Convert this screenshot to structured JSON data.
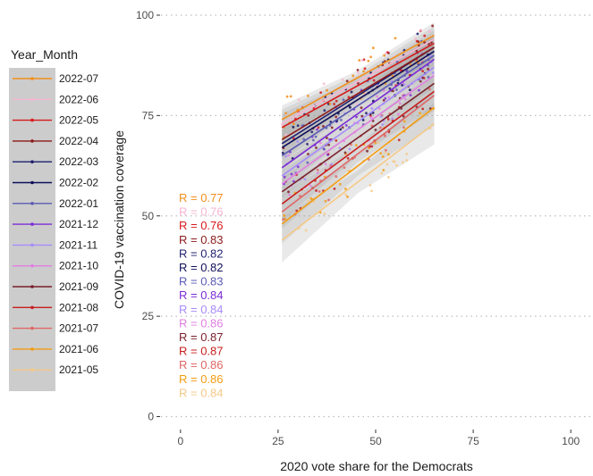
{
  "chart_data": {
    "type": "scatter",
    "xlabel": "2020 vote share for the Democrats",
    "ylabel": "COVID-19 vaccination coverage",
    "xlim": [
      -5,
      105
    ],
    "ylim": [
      -3,
      102
    ],
    "x_ticks": [
      0,
      25,
      50,
      75,
      100
    ],
    "y_ticks": [
      0,
      25,
      50,
      75,
      100
    ],
    "grid": "horizontal dotted",
    "legend": {
      "title": "Year_Month",
      "placement": "left",
      "entries": [
        "2022-07",
        "2022-06",
        "2022-05",
        "2022-04",
        "2022-03",
        "2022-02",
        "2022-01",
        "2021-12",
        "2021-11",
        "2021-10",
        "2021-09",
        "2021-08",
        "2021-07",
        "2021-06",
        "2021-05"
      ]
    },
    "series": [
      {
        "name": "2022-07",
        "color": "#f28e1c",
        "r_label": "R = 0.77",
        "fit": {
          "x": [
            26,
            65
          ],
          "y": [
            74,
            95
          ]
        },
        "band": 2.5
      },
      {
        "name": "2022-06",
        "color": "#f7b6d2",
        "r_label": "R = 0.76",
        "fit": {
          "x": [
            26,
            65
          ],
          "y": [
            73,
            94
          ]
        },
        "band": 2.5
      },
      {
        "name": "2022-05",
        "color": "#d7191c",
        "r_label": "R = 0.76",
        "fit": {
          "x": [
            26,
            65
          ],
          "y": [
            72,
            93
          ]
        },
        "band": 2.5
      },
      {
        "name": "2022-04",
        "color": "#8b1a1a",
        "r_label": "R = 0.83",
        "fit": {
          "x": [
            26,
            65
          ],
          "y": [
            69,
            92
          ]
        },
        "band": 2.5
      },
      {
        "name": "2022-03",
        "color": "#1f1f6f",
        "r_label": "R = 0.82",
        "fit": {
          "x": [
            26,
            65
          ],
          "y": [
            68,
            92
          ]
        },
        "band": 2.5
      },
      {
        "name": "2022-02",
        "color": "#0f0f5a",
        "r_label": "R = 0.82",
        "fit": {
          "x": [
            26,
            65
          ],
          "y": [
            67,
            91
          ]
        },
        "band": 2.5
      },
      {
        "name": "2022-01",
        "color": "#5a5ab5",
        "r_label": "R = 0.83",
        "fit": {
          "x": [
            26,
            65
          ],
          "y": [
            65,
            90
          ]
        },
        "band": 2.5
      },
      {
        "name": "2021-12",
        "color": "#7b2cd6",
        "r_label": "R = 0.84",
        "fit": {
          "x": [
            26,
            65
          ],
          "y": [
            62,
            89
          ]
        },
        "band": 2.5
      },
      {
        "name": "2021-11",
        "color": "#a78bfa",
        "r_label": "R = 0.84",
        "fit": {
          "x": [
            26,
            65
          ],
          "y": [
            60,
            87
          ]
        },
        "band": 2.5
      },
      {
        "name": "2021-10",
        "color": "#e07ee0",
        "r_label": "R = 0.86",
        "fit": {
          "x": [
            26,
            65
          ],
          "y": [
            58,
            85
          ]
        },
        "band": 2.5
      },
      {
        "name": "2021-09",
        "color": "#7a1f2b",
        "r_label": "R = 0.87",
        "fit": {
          "x": [
            26,
            65
          ],
          "y": [
            56,
            83
          ]
        },
        "band": 2.5
      },
      {
        "name": "2021-08",
        "color": "#c81e1e",
        "r_label": "R = 0.87",
        "fit": {
          "x": [
            26,
            65
          ],
          "y": [
            53,
            81
          ]
        },
        "band": 3
      },
      {
        "name": "2021-07",
        "color": "#e06666",
        "r_label": "R = 0.86",
        "fit": {
          "x": [
            26,
            65
          ],
          "y": [
            51,
            80
          ]
        },
        "band": 3
      },
      {
        "name": "2021-06",
        "color": "#f39c12",
        "r_label": "R = 0.86",
        "fit": {
          "x": [
            26,
            65
          ],
          "y": [
            48,
            77
          ]
        },
        "band": 3.5
      },
      {
        "name": "2021-05",
        "color": "#f5c987",
        "r_label": "R = 0.84",
        "fit": {
          "x": [
            26,
            65
          ],
          "y": [
            44,
            73
          ]
        },
        "band": 4
      }
    ]
  }
}
